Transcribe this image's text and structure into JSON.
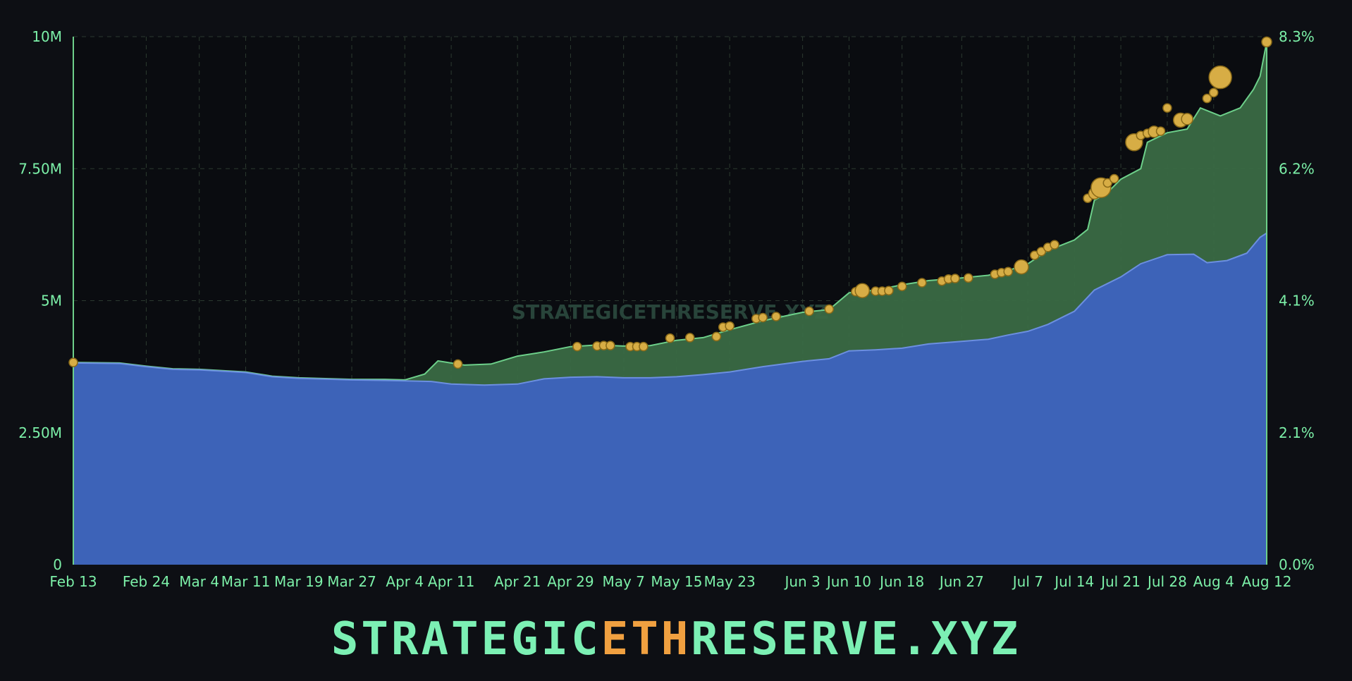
{
  "colors": {
    "background": "#0d0f14",
    "axis_text": "#7cf0a8",
    "grid": "#2c3a30",
    "base_area": "#3d63b8",
    "base_line": "#6c8fe0",
    "top_area": "#3a6a45",
    "top_line": "#6dd08a",
    "marker": "#d7ad45",
    "marker_stroke": "#8a6a18",
    "watermark": "#28443a",
    "brand_main": "#7cf0b4",
    "brand_accent": "#f0a040"
  },
  "watermark": "STRATEGICETHRESERVE.XYZ",
  "brand": {
    "pre": "STRATEGIC",
    "accent": "ETH",
    "post": "RESERVE.XYZ"
  },
  "chart_data": {
    "type": "area",
    "x_start": "2025-02-13",
    "x_end": "2025-08-12",
    "x_ticks": [
      "Feb 13",
      "Feb 24",
      "Mar 4",
      "Mar 11",
      "Mar 19",
      "Mar 27",
      "Apr 4",
      "Apr 11",
      "Apr 21",
      "Apr 29",
      "May 7",
      "May 15",
      "May 23",
      "Jun 3",
      "Jun 10",
      "Jun 18",
      "Jun 27",
      "Jul 7",
      "Jul 14",
      "Jul 21",
      "Jul 28",
      "Aug 4",
      "Aug 12"
    ],
    "y_left": {
      "ticks": [
        "0",
        "2.50M",
        "5M",
        "7.50M",
        "10M"
      ],
      "values": [
        0,
        2500000,
        5000000,
        7500000,
        10000000
      ],
      "range": [
        0,
        10000000
      ]
    },
    "y_right": {
      "ticks": [
        "0.0%",
        "2.1%",
        "4.1%",
        "6.2%",
        "8.3%"
      ]
    },
    "grid": true,
    "series": [
      {
        "points": [
          [
            "2025-02-13",
            3820000
          ],
          [
            "2025-02-20",
            3810000
          ],
          [
            "2025-02-24",
            3750000
          ],
          [
            "2025-02-28",
            3700000
          ],
          [
            "2025-03-04",
            3690000
          ],
          [
            "2025-03-11",
            3640000
          ],
          [
            "2025-03-15",
            3560000
          ],
          [
            "2025-03-19",
            3530000
          ],
          [
            "2025-03-27",
            3500000
          ],
          [
            "2025-04-01",
            3490000
          ],
          [
            "2025-04-04",
            3480000
          ],
          [
            "2025-04-08",
            3470000
          ],
          [
            "2025-04-11",
            3420000
          ],
          [
            "2025-04-16",
            3400000
          ],
          [
            "2025-04-21",
            3420000
          ],
          [
            "2025-04-25",
            3520000
          ],
          [
            "2025-04-29",
            3550000
          ],
          [
            "2025-05-03",
            3560000
          ],
          [
            "2025-05-07",
            3540000
          ],
          [
            "2025-05-11",
            3540000
          ],
          [
            "2025-05-15",
            3560000
          ],
          [
            "2025-05-19",
            3600000
          ],
          [
            "2025-05-23",
            3650000
          ],
          [
            "2025-05-28",
            3750000
          ],
          [
            "2025-06-03",
            3850000
          ],
          [
            "2025-06-07",
            3900000
          ],
          [
            "2025-06-10",
            4050000
          ],
          [
            "2025-06-14",
            4070000
          ],
          [
            "2025-06-18",
            4100000
          ],
          [
            "2025-06-22",
            4180000
          ],
          [
            "2025-06-27",
            4230000
          ],
          [
            "2025-07-01",
            4270000
          ],
          [
            "2025-07-04",
            4350000
          ],
          [
            "2025-07-07",
            4420000
          ],
          [
            "2025-07-10",
            4550000
          ],
          [
            "2025-07-14",
            4800000
          ],
          [
            "2025-07-17",
            5200000
          ],
          [
            "2025-07-21",
            5450000
          ],
          [
            "2025-07-24",
            5700000
          ],
          [
            "2025-07-28",
            5870000
          ],
          [
            "2025-08-01",
            5880000
          ],
          [
            "2025-08-03",
            5720000
          ],
          [
            "2025-08-06",
            5760000
          ],
          [
            "2025-08-09",
            5900000
          ],
          [
            "2025-08-11",
            6200000
          ],
          [
            "2025-08-12",
            6280000
          ]
        ]
      },
      {
        "points": [
          [
            "2025-02-13",
            3830000
          ],
          [
            "2025-02-20",
            3820000
          ],
          [
            "2025-02-24",
            3760000
          ],
          [
            "2025-02-28",
            3710000
          ],
          [
            "2025-03-04",
            3700000
          ],
          [
            "2025-03-11",
            3650000
          ],
          [
            "2025-03-15",
            3570000
          ],
          [
            "2025-03-19",
            3540000
          ],
          [
            "2025-03-27",
            3510000
          ],
          [
            "2025-04-01",
            3510000
          ],
          [
            "2025-04-04",
            3500000
          ],
          [
            "2025-04-07",
            3610000
          ],
          [
            "2025-04-09",
            3860000
          ],
          [
            "2025-04-13",
            3780000
          ],
          [
            "2025-04-17",
            3800000
          ],
          [
            "2025-04-21",
            3950000
          ],
          [
            "2025-04-25",
            4030000
          ],
          [
            "2025-04-29",
            4130000
          ],
          [
            "2025-05-03",
            4160000
          ],
          [
            "2025-05-07",
            4140000
          ],
          [
            "2025-05-11",
            4150000
          ],
          [
            "2025-05-15",
            4250000
          ],
          [
            "2025-05-19",
            4300000
          ],
          [
            "2025-05-23",
            4450000
          ],
          [
            "2025-05-28",
            4620000
          ],
          [
            "2025-06-03",
            4780000
          ],
          [
            "2025-06-07",
            4830000
          ],
          [
            "2025-06-10",
            5150000
          ],
          [
            "2025-06-14",
            5200000
          ],
          [
            "2025-06-18",
            5300000
          ],
          [
            "2025-06-22",
            5380000
          ],
          [
            "2025-06-27",
            5430000
          ],
          [
            "2025-07-01",
            5480000
          ],
          [
            "2025-07-04",
            5570000
          ],
          [
            "2025-07-07",
            5700000
          ],
          [
            "2025-07-10",
            5950000
          ],
          [
            "2025-07-14",
            6150000
          ],
          [
            "2025-07-16",
            6350000
          ],
          [
            "2025-07-17",
            6900000
          ],
          [
            "2025-07-19",
            7050000
          ],
          [
            "2025-07-21",
            7300000
          ],
          [
            "2025-07-24",
            7500000
          ],
          [
            "2025-07-25",
            8000000
          ],
          [
            "2025-07-28",
            8180000
          ],
          [
            "2025-07-31",
            8250000
          ],
          [
            "2025-08-02",
            8650000
          ],
          [
            "2025-08-05",
            8500000
          ],
          [
            "2025-08-08",
            8650000
          ],
          [
            "2025-08-10",
            9000000
          ],
          [
            "2025-08-11",
            9250000
          ],
          [
            "2025-08-12",
            9900000
          ]
        ]
      }
    ],
    "markers": [
      [
        "2025-02-13",
        3830000,
        6
      ],
      [
        "2025-04-12",
        3800000,
        6
      ],
      [
        "2025-04-30",
        4130000,
        6
      ],
      [
        "2025-05-03",
        4140000,
        6
      ],
      [
        "2025-05-04",
        4150000,
        6
      ],
      [
        "2025-05-05",
        4150000,
        6
      ],
      [
        "2025-05-08",
        4130000,
        6
      ],
      [
        "2025-05-09",
        4130000,
        6
      ],
      [
        "2025-05-10",
        4130000,
        6
      ],
      [
        "2025-05-14",
        4290000,
        6
      ],
      [
        "2025-05-17",
        4300000,
        6
      ],
      [
        "2025-05-21",
        4320000,
        6
      ],
      [
        "2025-05-22",
        4500000,
        6
      ],
      [
        "2025-05-23",
        4520000,
        6
      ],
      [
        "2025-05-27",
        4660000,
        6
      ],
      [
        "2025-05-28",
        4680000,
        6
      ],
      [
        "2025-05-30",
        4700000,
        6
      ],
      [
        "2025-06-04",
        4800000,
        6
      ],
      [
        "2025-06-07",
        4840000,
        6
      ],
      [
        "2025-06-11",
        5170000,
        6
      ],
      [
        "2025-06-12",
        5190000,
        10
      ],
      [
        "2025-06-14",
        5180000,
        6
      ],
      [
        "2025-06-15",
        5180000,
        6
      ],
      [
        "2025-06-16",
        5190000,
        6
      ],
      [
        "2025-06-18",
        5270000,
        6
      ],
      [
        "2025-06-21",
        5340000,
        6
      ],
      [
        "2025-06-24",
        5370000,
        6
      ],
      [
        "2025-06-25",
        5410000,
        6
      ],
      [
        "2025-06-26",
        5420000,
        6
      ],
      [
        "2025-06-28",
        5430000,
        6
      ],
      [
        "2025-07-02",
        5500000,
        6
      ],
      [
        "2025-07-03",
        5530000,
        6
      ],
      [
        "2025-07-04",
        5550000,
        6
      ],
      [
        "2025-07-06",
        5640000,
        10
      ],
      [
        "2025-07-08",
        5860000,
        6
      ],
      [
        "2025-07-09",
        5930000,
        6
      ],
      [
        "2025-07-10",
        6010000,
        6
      ],
      [
        "2025-07-11",
        6060000,
        6
      ],
      [
        "2025-07-16",
        6940000,
        6
      ],
      [
        "2025-07-17",
        7030000,
        8
      ],
      [
        "2025-07-18",
        7140000,
        14
      ],
      [
        "2025-07-19",
        7230000,
        6
      ],
      [
        "2025-07-20",
        7310000,
        6
      ],
      [
        "2025-07-23",
        8000000,
        12
      ],
      [
        "2025-07-24",
        8130000,
        6
      ],
      [
        "2025-07-25",
        8170000,
        6
      ],
      [
        "2025-07-26",
        8200000,
        8
      ],
      [
        "2025-07-27",
        8210000,
        6
      ],
      [
        "2025-07-28",
        8650000,
        6
      ],
      [
        "2025-07-30",
        8420000,
        10
      ],
      [
        "2025-07-31",
        8440000,
        8
      ],
      [
        "2025-08-03",
        8830000,
        6
      ],
      [
        "2025-08-04",
        8940000,
        6
      ],
      [
        "2025-08-05",
        9230000,
        16
      ],
      [
        "2025-08-12",
        9900000,
        7
      ]
    ]
  }
}
